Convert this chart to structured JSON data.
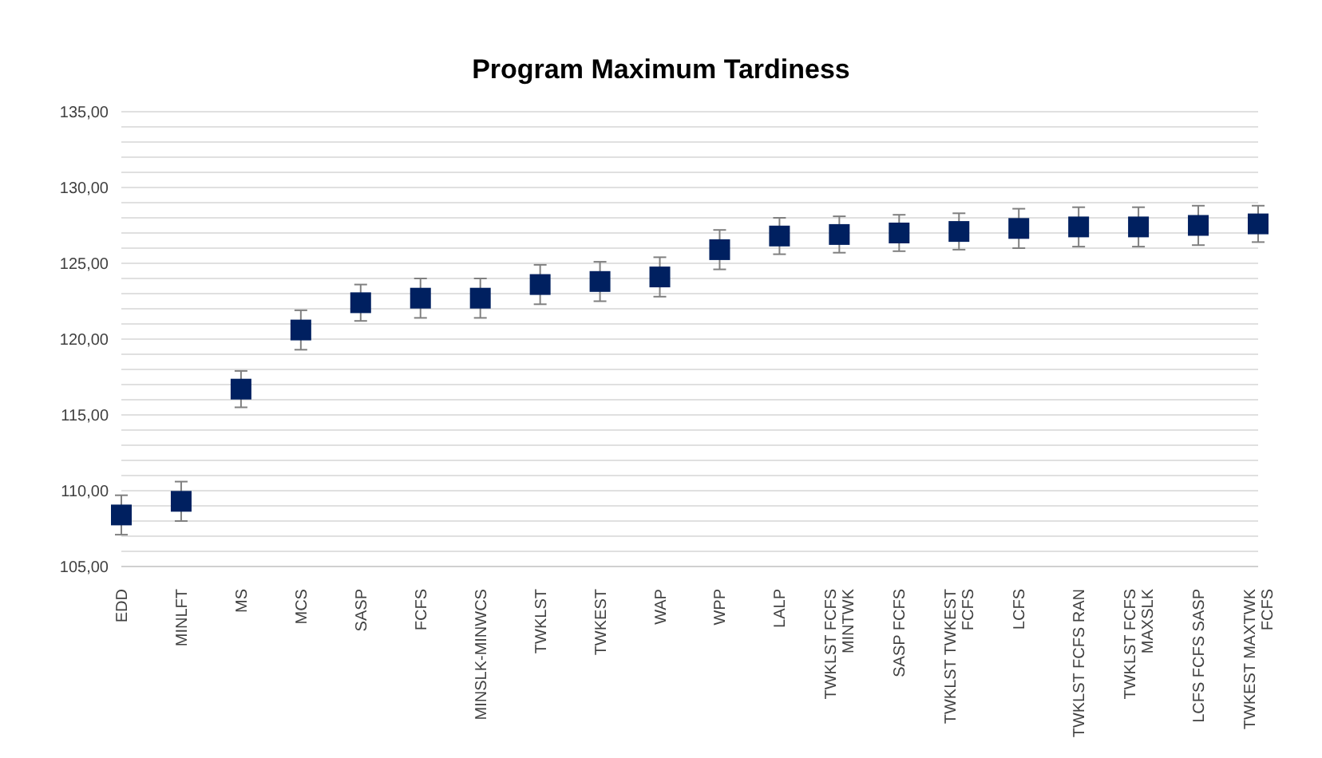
{
  "chart_data": {
    "type": "scatter",
    "title": "Program Maximum Tardiness",
    "categories": [
      "EDD",
      "MINLFT",
      "MS",
      "MCS",
      "SASP",
      "FCFS",
      "MINSLK-MINWCS",
      "TWKLST",
      "TWKEST",
      "WAP",
      "WPP",
      "LALP",
      "TWKLST FCFS MINTWK",
      "SASP FCFS",
      "TWKLST TWKEST FCFS",
      "LCFS",
      "TWKLST FCFS RAN",
      "TWKLST FCFS MAXSLK",
      "LCFS FCFS SASP",
      "TWKEST MAXTWK FCFS"
    ],
    "series": [
      {
        "color": "#002060",
        "values": [
          108.4,
          109.3,
          116.7,
          120.6,
          122.4,
          122.7,
          122.7,
          123.6,
          123.8,
          124.1,
          125.9,
          126.8,
          126.9,
          127.0,
          127.1,
          127.3,
          127.4,
          127.4,
          127.5,
          127.6
        ],
        "errors": [
          1.3,
          1.3,
          1.2,
          1.3,
          1.2,
          1.3,
          1.3,
          1.3,
          1.3,
          1.3,
          1.3,
          1.2,
          1.2,
          1.2,
          1.2,
          1.3,
          1.3,
          1.3,
          1.3,
          1.2
        ]
      }
    ],
    "ylim": [
      105,
      135
    ],
    "yticks": [
      {
        "value": 105,
        "label": "105,00"
      },
      {
        "value": 106,
        "label": null
      },
      {
        "value": 107,
        "label": null
      },
      {
        "value": 108,
        "label": null
      },
      {
        "value": 109,
        "label": null
      },
      {
        "value": 110,
        "label": "110,00"
      },
      {
        "value": 111,
        "label": null
      },
      {
        "value": 112,
        "label": null
      },
      {
        "value": 113,
        "label": null
      },
      {
        "value": 114,
        "label": null
      },
      {
        "value": 115,
        "label": "115,00"
      },
      {
        "value": 116,
        "label": null
      },
      {
        "value": 117,
        "label": null
      },
      {
        "value": 118,
        "label": null
      },
      {
        "value": 119,
        "label": null
      },
      {
        "value": 120,
        "label": "120,00"
      },
      {
        "value": 121,
        "label": null
      },
      {
        "value": 122,
        "label": null
      },
      {
        "value": 123,
        "label": null
      },
      {
        "value": 124,
        "label": null
      },
      {
        "value": 125,
        "label": "125,00"
      },
      {
        "value": 126,
        "label": null
      },
      {
        "value": 127,
        "label": null
      },
      {
        "value": 128,
        "label": null
      },
      {
        "value": 129,
        "label": null
      },
      {
        "value": 130,
        "label": "130,00"
      },
      {
        "value": 131,
        "label": null
      },
      {
        "value": 132,
        "label": null
      },
      {
        "value": 133,
        "label": null
      },
      {
        "value": 134,
        "label": null
      },
      {
        "value": 135,
        "label": "135,00"
      }
    ],
    "grid": "y",
    "marker": "square",
    "legend": false
  }
}
